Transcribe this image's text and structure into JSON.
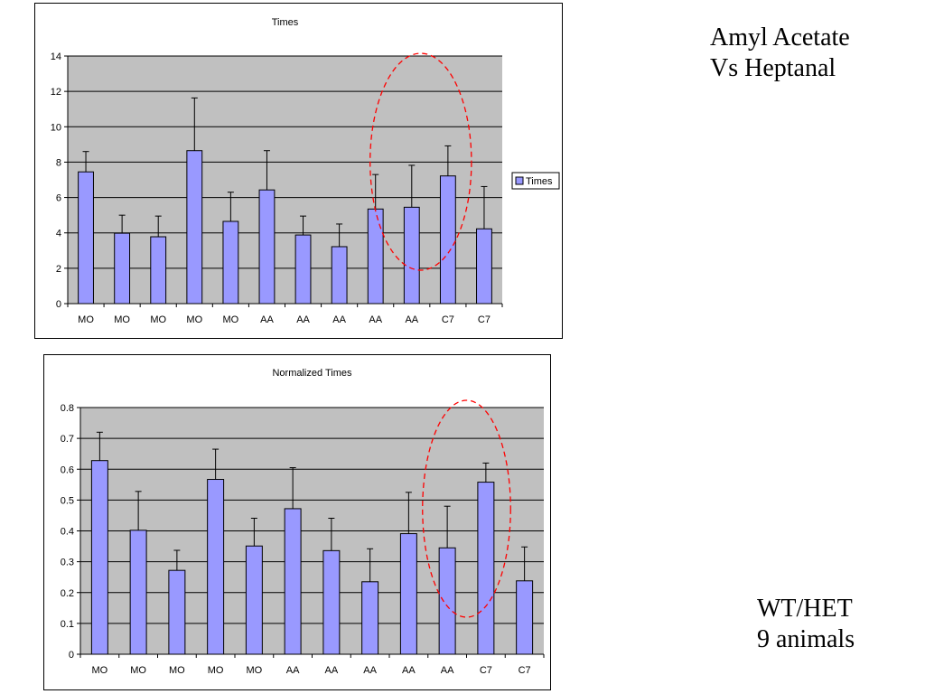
{
  "chart_data": [
    {
      "type": "bar",
      "title": "Times",
      "categories": [
        "MO",
        "MO",
        "MO",
        "MO",
        "MO",
        "AA",
        "AA",
        "AA",
        "AA",
        "AA",
        "C7",
        "C7"
      ],
      "series": [
        {
          "name": "Times",
          "values": [
            7.45,
            3.98,
            3.78,
            8.65,
            4.65,
            6.43,
            3.88,
            3.22,
            5.35,
            5.45,
            7.22,
            4.23
          ],
          "error_plus": [
            1.15,
            1.02,
            1.17,
            2.98,
            1.65,
            2.22,
            1.07,
            1.28,
            1.95,
            2.37,
            1.7,
            2.39
          ]
        }
      ],
      "ylim": [
        0,
        14
      ],
      "yticks": [
        0,
        2,
        4,
        6,
        8,
        10,
        12,
        14
      ],
      "grid": true,
      "legend": "right",
      "bar_color": "#9999ff",
      "plot_bg": "#c0c0c0",
      "highlight": {
        "shape": "ellipse",
        "color": "#ff0000",
        "style": "dashed",
        "categories": [
          "AA",
          "C7"
        ],
        "category_index_range": [
          8.5,
          11
        ]
      }
    },
    {
      "type": "bar",
      "title": "Normalized Times",
      "categories": [
        "MO",
        "MO",
        "MO",
        "MO",
        "MO",
        "AA",
        "AA",
        "AA",
        "AA",
        "AA",
        "C7",
        "C7"
      ],
      "series": [
        {
          "values": [
            0.628,
            0.402,
            0.272,
            0.567,
            0.351,
            0.472,
            0.336,
            0.235,
            0.391,
            0.345,
            0.558,
            0.238
          ],
          "error_plus": [
            0.092,
            0.126,
            0.065,
            0.098,
            0.09,
            0.133,
            0.105,
            0.107,
            0.134,
            0.135,
            0.062,
            0.11
          ]
        }
      ],
      "ylim": [
        0,
        0.8
      ],
      "yticks": [
        "0",
        "0.1",
        "0.2",
        "0.3",
        "0.4",
        "0.5",
        "0.6",
        "0.7",
        "0.8"
      ],
      "grid": true,
      "bar_color": "#9999ff",
      "plot_bg": "#c0c0c0",
      "highlight": {
        "shape": "ellipse",
        "color": "#ff0000",
        "style": "dashed",
        "categories": [
          "AA",
          "C7"
        ],
        "category_index_range": [
          9,
          11
        ]
      }
    }
  ],
  "side": {
    "top_line1": "Amyl Acetate",
    "top_line2": "Vs Heptanal",
    "bottom_line1": "WT/HET",
    "bottom_line2": "9 animals"
  }
}
